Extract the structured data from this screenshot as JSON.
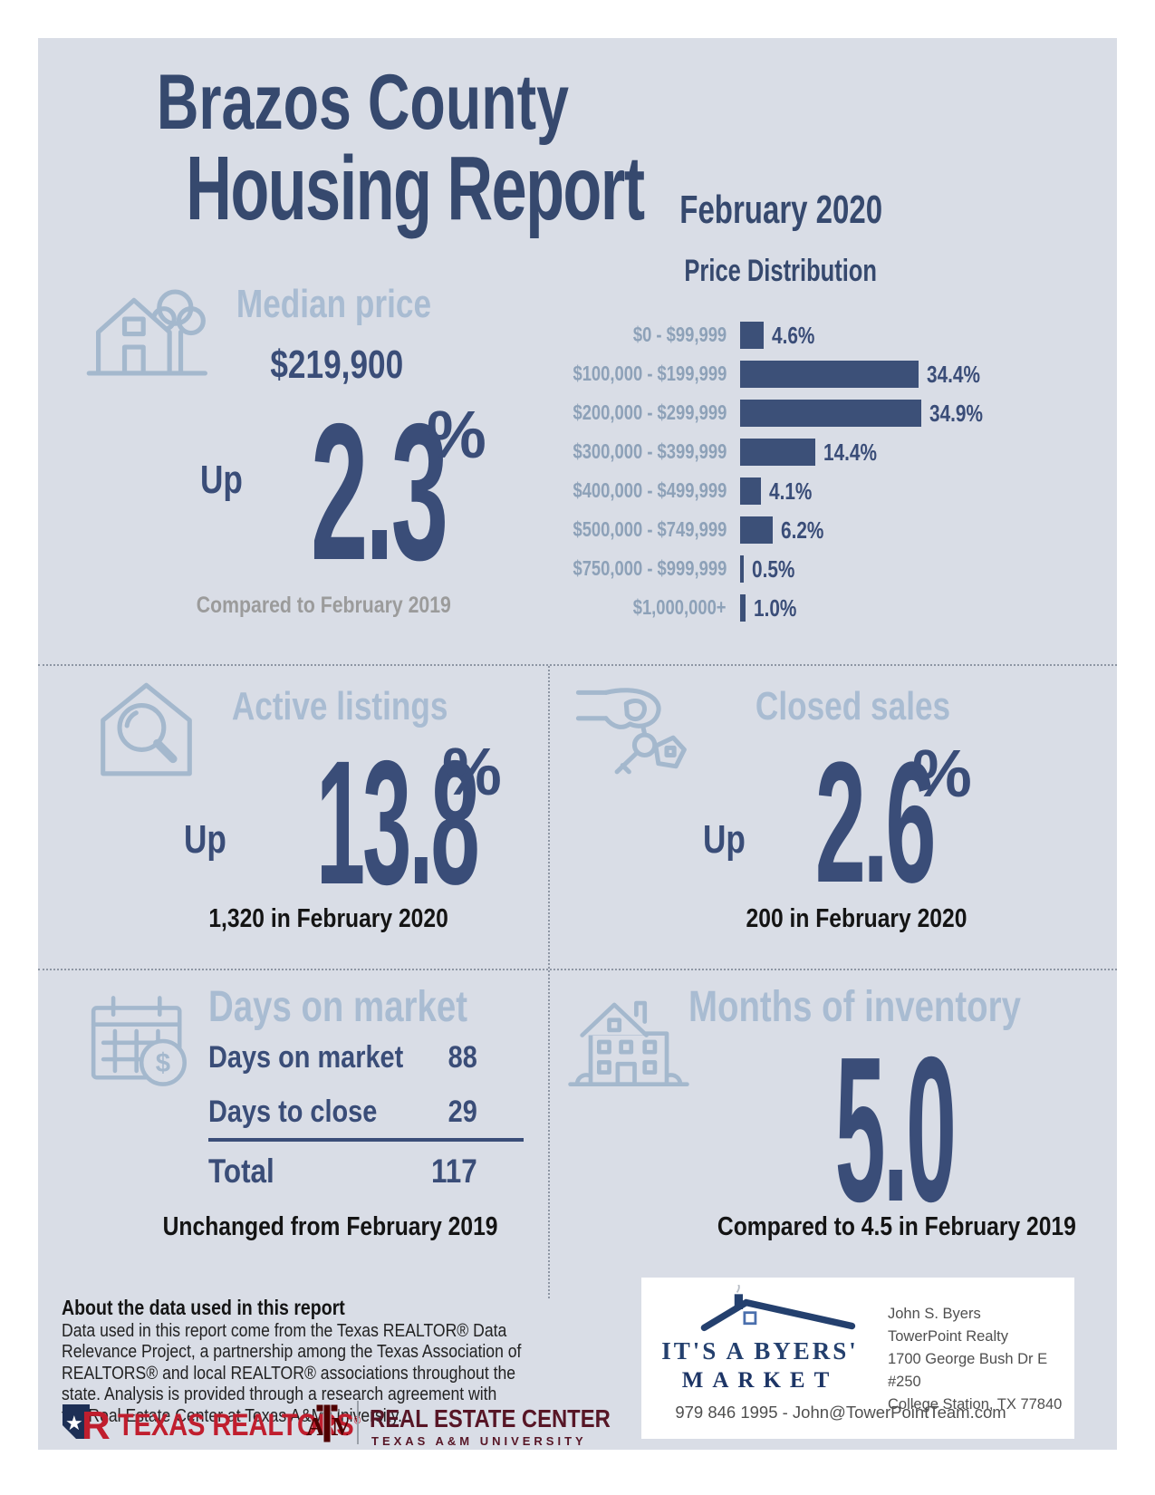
{
  "report": {
    "title_line1": "Brazos County",
    "title_line2": "Housing Report",
    "month": "February 2020"
  },
  "median_price": {
    "heading": "Median price",
    "value": "$219,900",
    "direction": "Up",
    "change_percent": "2.3",
    "percent_sign": "%",
    "comparison": "Compared to February 2019"
  },
  "chart_data": {
    "type": "bar",
    "orientation": "horizontal",
    "title": "Price Distribution",
    "period": "February 2020",
    "categories": [
      "$0 - $99,999",
      "$100,000 - $199,999",
      "$200,000 - $299,999",
      "$300,000 - $399,999",
      "$400,000 - $499,999",
      "$500,000 - $749,999",
      "$750,000 - $999,999",
      "$1,000,000+"
    ],
    "values": [
      4.6,
      34.4,
      34.9,
      14.4,
      4.1,
      6.2,
      0.5,
      1.0
    ],
    "value_labels": [
      "4.6%",
      "34.4%",
      "34.9%",
      "14.4%",
      "4.1%",
      "6.2%",
      "0.5%",
      "1.0%"
    ],
    "xlim": [
      0,
      35
    ],
    "grid": false,
    "legend": false,
    "bar_color": "#3c5078",
    "category_label_color": "#8da1b8",
    "value_label_color": "#3a4d78"
  },
  "active_listings": {
    "heading": "Active listings",
    "direction": "Up",
    "change_percent": "13.8",
    "percent_sign": "%",
    "subtitle": "1,320 in February 2020"
  },
  "closed_sales": {
    "heading": "Closed sales",
    "direction": "Up",
    "change_percent": "2.6",
    "percent_sign": "%",
    "subtitle": "200 in February 2020"
  },
  "days_on_market": {
    "heading": "Days on market",
    "rows": [
      {
        "label": "Days on market",
        "value": "88"
      },
      {
        "label": "Days to close",
        "value": "29"
      }
    ],
    "total_label": "Total",
    "total_value": "117",
    "comparison": "Unchanged from February 2019"
  },
  "months_of_inventory": {
    "heading": "Months of inventory",
    "value": "5.0",
    "comparison": "Compared to 4.5 in February 2019"
  },
  "about": {
    "heading": "About the data used in this report",
    "body": "Data used in this report come from the Texas REALTOR® Data Relevance Project, a partnership among the Texas Association of REALTORS® and local REALTOR® associations throughout the state. Analysis is provided through a research agreement with the Real Estate Center at Texas A&M University."
  },
  "footer": {
    "texas_realtors_label": "TEXAS REALTORS",
    "texas_realtors_reg": "®",
    "atm_letters": {
      "a": "A",
      "t": "T",
      "m": "M"
    },
    "real_estate_center_title": "REAL ESTATE CENTER",
    "real_estate_center_subtitle": "TEXAS A&M UNIVERSITY"
  },
  "ad": {
    "brand_line1": "IT'S A BYERS'",
    "brand_line2": "MARKET",
    "contact_lines": [
      "John S. Byers",
      "TowerPoint Realty",
      "1700 George Bush Dr E #250",
      "College Station, TX 77840"
    ],
    "phone_email": "979 846 1995 - John@TowerPointTeam.com"
  },
  "colors": {
    "navy": "#3a4d78",
    "light_blue_heading": "#a9bcd2",
    "icon_blue": "#a4b8cd",
    "gray_text": "#9b9b9b",
    "black_text": "#141414",
    "realtor_red": "#c01e2e",
    "aggie_maroon": "#571626",
    "panel_background": "#d9dde6"
  }
}
